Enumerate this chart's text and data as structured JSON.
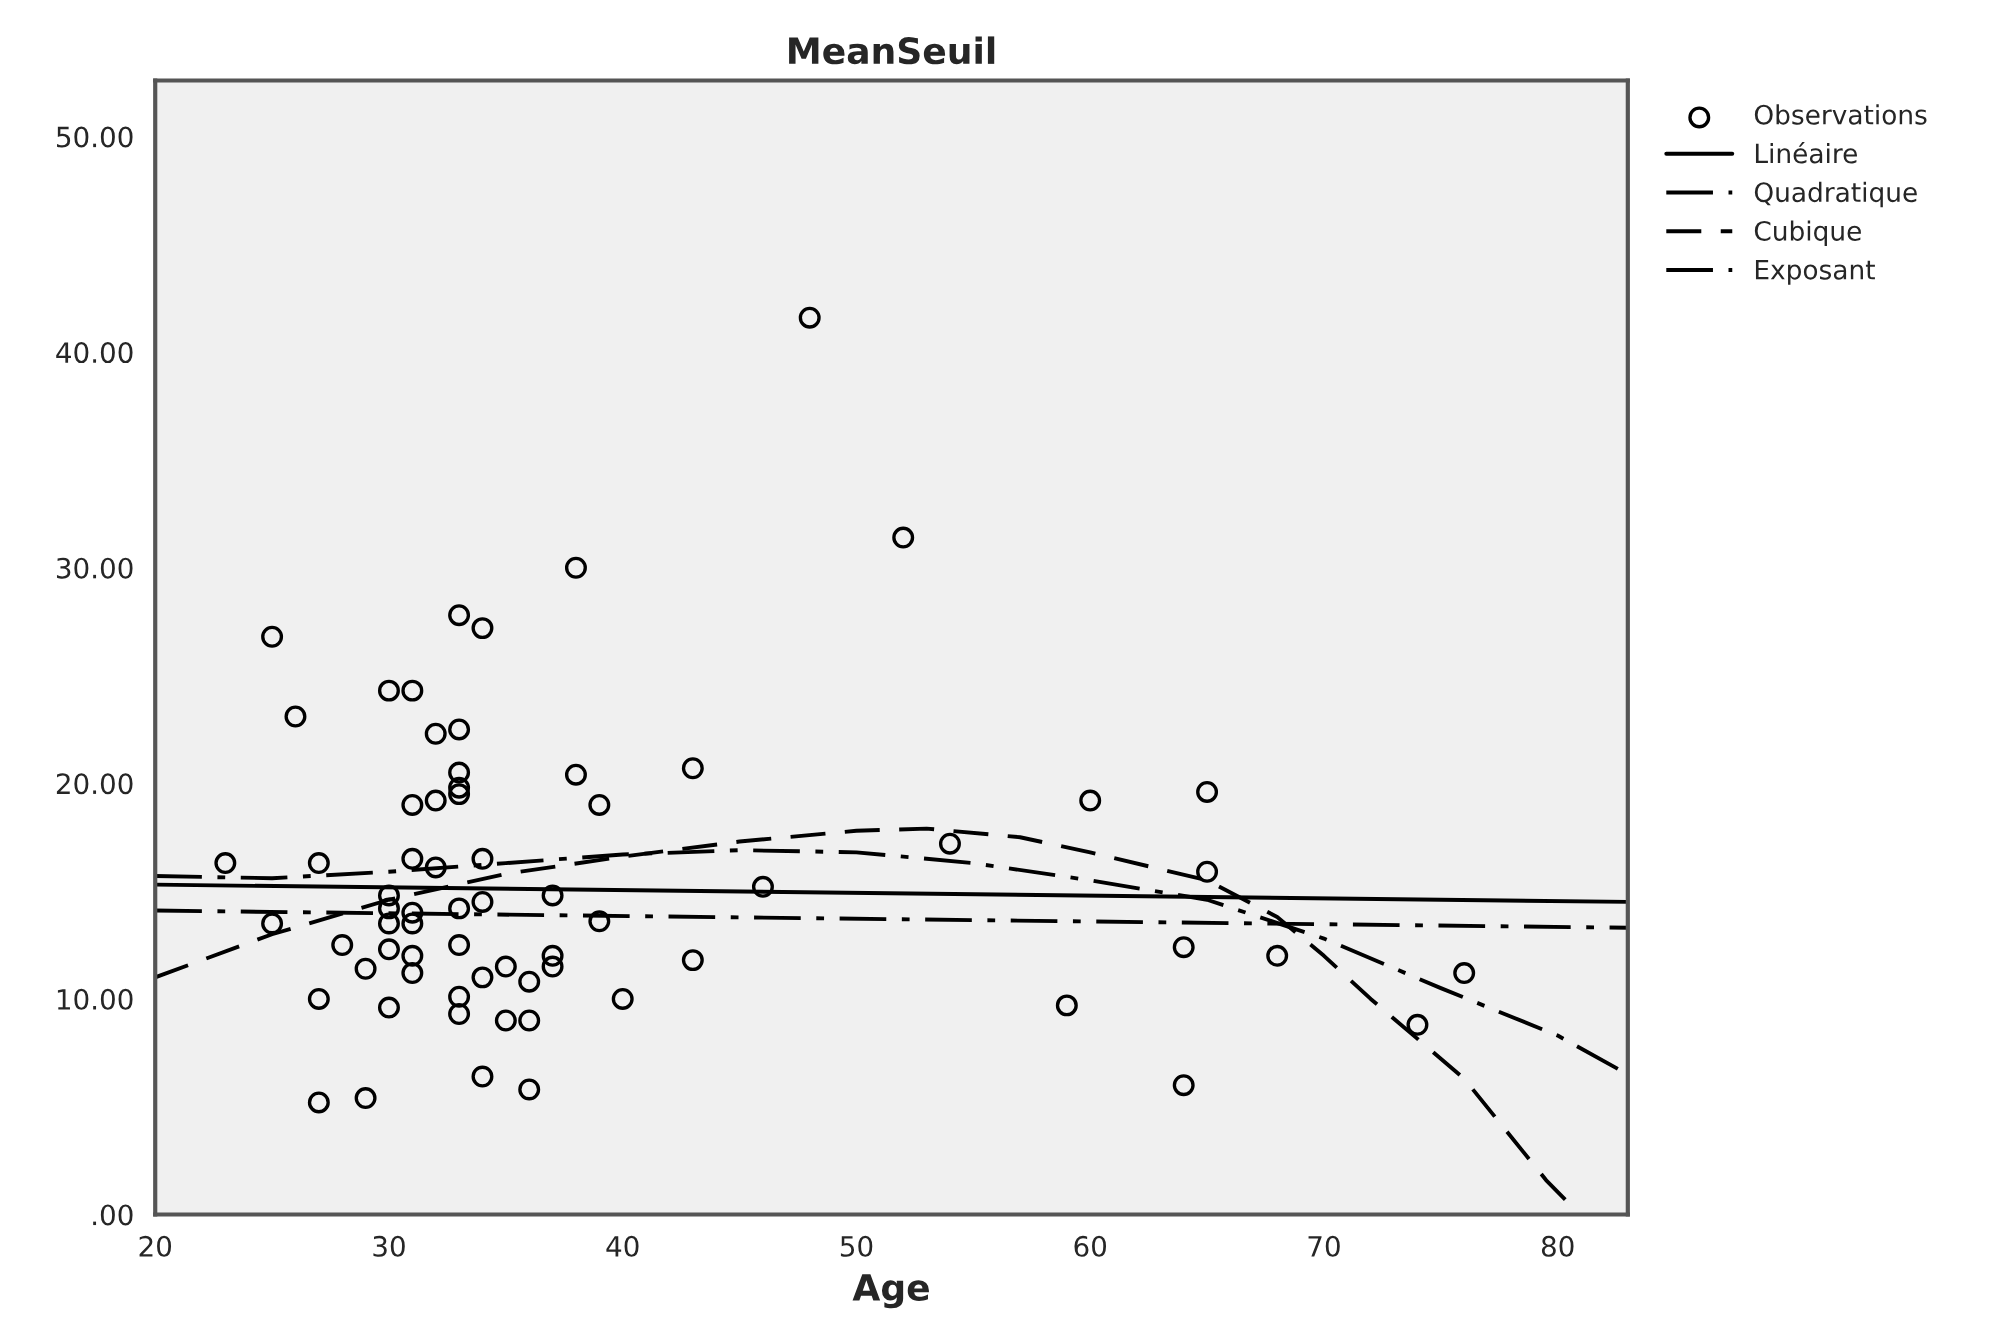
{
  "chart_data": {
    "type": "scatter",
    "title": "MeanSeuil",
    "xlabel": "Age",
    "xlim": [
      20,
      83
    ],
    "xticks": [
      20,
      30,
      40,
      50,
      60,
      70,
      80
    ],
    "ylim": [
      0,
      52.6
    ],
    "yticks": [
      {
        "value": 0,
        "label": ".00"
      },
      {
        "value": 10,
        "label": "10.00"
      },
      {
        "value": 20,
        "label": "20.00"
      },
      {
        "value": 30,
        "label": "30.00"
      },
      {
        "value": 40,
        "label": "40.00"
      },
      {
        "value": 50,
        "label": "50.00"
      }
    ],
    "grid": false,
    "legend": "top right",
    "series": [
      {
        "name": "Observations",
        "marker": "circle",
        "color": "#000000",
        "x": [
          23,
          25,
          25,
          26,
          27,
          27,
          27,
          28,
          29,
          29,
          30,
          30,
          30,
          30,
          30,
          30,
          31,
          31,
          31,
          31,
          31,
          31,
          31,
          32,
          32,
          32,
          33,
          33,
          33,
          33,
          33,
          33,
          33,
          33,
          33,
          34,
          34,
          34,
          34,
          34,
          35,
          35,
          36,
          36,
          36,
          37,
          37,
          37,
          38,
          38,
          39,
          39,
          40,
          43,
          43,
          46,
          48,
          52,
          54,
          59,
          60,
          64,
          64,
          65,
          65,
          68,
          74,
          76
        ],
        "values": [
          16.3,
          26.8,
          13.5,
          23.1,
          16.3,
          10,
          5.2,
          12.5,
          11.4,
          5.4,
          24.3,
          14.8,
          14.2,
          13.5,
          12.3,
          9.6,
          24.3,
          16.5,
          19,
          14,
          13.5,
          12,
          11.2,
          22.3,
          19.2,
          16.1,
          27.8,
          22.5,
          20.5,
          19.8,
          19.5,
          14.2,
          12.5,
          10.1,
          9.3,
          27.2,
          16.5,
          14.5,
          11,
          6.4,
          11.5,
          9,
          10.8,
          9,
          5.8,
          14.8,
          12,
          11.5,
          30,
          20.4,
          19,
          13.6,
          10,
          20.7,
          11.8,
          15.2,
          41.6,
          31.4,
          17.2,
          9.7,
          19.2,
          12.4,
          6,
          19.6,
          15.9,
          12,
          8.8,
          11.2
        ]
      },
      {
        "name": "Linéaire",
        "type": "line",
        "line_style": "solid",
        "color": "#000000",
        "x": [
          20,
          83
        ],
        "values": [
          15.3,
          14.5
        ]
      },
      {
        "name": "Quadratique",
        "type": "line",
        "line_style": "dashdot",
        "color": "#000000",
        "x": [
          20,
          25,
          30,
          35,
          40,
          45,
          50,
          55,
          60,
          65,
          70,
          75,
          80,
          83
        ],
        "values": [
          15.7,
          15.6,
          15.9,
          16.3,
          16.7,
          16.9,
          16.8,
          16.3,
          15.5,
          14.6,
          12.8,
          10.5,
          8.3,
          6.5
        ]
      },
      {
        "name": "Cubique",
        "type": "line",
        "line_style": "dashed",
        "color": "#000000",
        "x": [
          20,
          25,
          30,
          35,
          40,
          45,
          50,
          53,
          57,
          60,
          65,
          68,
          70,
          72,
          76,
          79.5,
          80.5
        ],
        "values": [
          11,
          13,
          14.6,
          15.8,
          16.6,
          17.3,
          17.8,
          17.9,
          17.5,
          16.8,
          15.5,
          13.8,
          12,
          10,
          6.3,
          1.6,
          0.5
        ]
      },
      {
        "name": "Exposant",
        "type": "line",
        "line_style": "dashdot",
        "color": "#000000",
        "x": [
          20,
          83
        ],
        "values": [
          14.1,
          13.3
        ]
      }
    ]
  }
}
